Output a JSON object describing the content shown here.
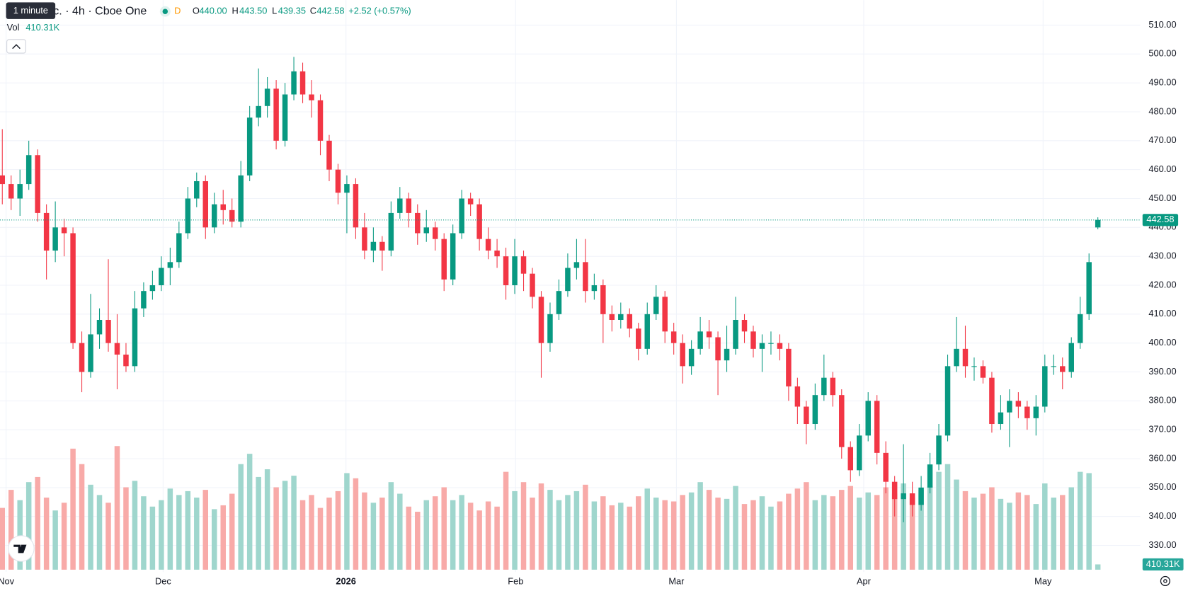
{
  "chart_data": {
    "type": "candlestick",
    "tooltip": "1 minute",
    "legend": {
      "symbol": "nc. · 4h · Cboe One",
      "flag": "D",
      "open_key": "O",
      "open": "440.00",
      "high_key": "H",
      "high": "443.50",
      "low_key": "L",
      "low": "439.35",
      "close_key": "C",
      "close": "442.58",
      "change": "+2.52 (+0.57%)"
    },
    "volume_title": "Vol",
    "volume_label": "410.31K",
    "up_color": "#089981",
    "down_color": "#f23645",
    "volume_up_color": "#9fd6cd",
    "volume_down_color": "#f8aaa8",
    "grid": true,
    "ylim": [
      320.8,
      518.65
    ],
    "yticks": [
      {
        "value": 510,
        "label": "510.00"
      },
      {
        "value": 500,
        "label": "500.00"
      },
      {
        "value": 490,
        "label": "490.00"
      },
      {
        "value": 480,
        "label": "480.00"
      },
      {
        "value": 470,
        "label": "470.00"
      },
      {
        "value": 460,
        "label": "460.00"
      },
      {
        "value": 450,
        "label": "450.00"
      },
      {
        "value": 440,
        "label": "440.00"
      },
      {
        "value": 430,
        "label": "430.00"
      },
      {
        "value": 420,
        "label": "420.00"
      },
      {
        "value": 410,
        "label": "410.00"
      },
      {
        "value": 400,
        "label": "400.00"
      },
      {
        "value": 390,
        "label": "390.00"
      },
      {
        "value": 380,
        "label": "380.00"
      },
      {
        "value": 370,
        "label": "370.00"
      },
      {
        "value": 360,
        "label": "360.00"
      },
      {
        "value": 350,
        "label": "350.00"
      },
      {
        "value": 340,
        "label": "340.00"
      },
      {
        "value": 330,
        "label": "330.00"
      }
    ],
    "xlim": [
      -0.26,
      128.8
    ],
    "xticks": [
      {
        "value": 0.43,
        "label": "Nov"
      },
      {
        "value": 18.2,
        "label": "Dec"
      },
      {
        "value": 38.9,
        "label": "2026"
      },
      {
        "value": 58.1,
        "label": "Feb"
      },
      {
        "value": 76.3,
        "label": "Mar"
      },
      {
        "value": 97.5,
        "label": "Apr"
      },
      {
        "value": 117.8,
        "label": "May"
      }
    ],
    "volume_lim": [
      0,
      10000000
    ],
    "last_price": {
      "value": 442.58,
      "label": "442.58"
    },
    "open": [
      458,
      455,
      450,
      455,
      465,
      445,
      432,
      440,
      438,
      400,
      390,
      403,
      408,
      400,
      396,
      392,
      412,
      418,
      420,
      426,
      428,
      438,
      450,
      456,
      440,
      448,
      446,
      442,
      458,
      478,
      482,
      488,
      470,
      486,
      494,
      486,
      484,
      470,
      460,
      452,
      455,
      440,
      432,
      435,
      432,
      445,
      450,
      445,
      438,
      440,
      436,
      422,
      438,
      450,
      448,
      436,
      432,
      430,
      420,
      430,
      424,
      416,
      400,
      410,
      418,
      426,
      428,
      418,
      420,
      410,
      408,
      410,
      405,
      398,
      410,
      416,
      404,
      400,
      392,
      398,
      404,
      402,
      394,
      398,
      408,
      404,
      398,
      400,
      400,
      398,
      385,
      378,
      372,
      382,
      388,
      382,
      364,
      356,
      368,
      380,
      362,
      352,
      346,
      348,
      344,
      350,
      358,
      368,
      392,
      398,
      392,
      392,
      388,
      372,
      376,
      380,
      378,
      374,
      378,
      392,
      392,
      390,
      400,
      410,
      440
    ],
    "high": [
      474,
      458,
      460,
      470,
      467,
      448,
      449,
      443,
      440,
      404,
      417,
      412,
      429,
      410,
      400,
      418,
      421,
      425,
      430,
      433,
      442,
      454,
      459,
      458,
      452,
      453,
      450,
      463,
      482,
      495,
      492,
      491,
      490,
      499,
      497,
      491,
      486,
      472,
      462,
      458,
      457,
      445,
      440,
      437,
      449,
      454,
      452,
      448,
      446,
      442,
      438,
      441,
      453,
      452,
      450,
      440,
      436,
      433,
      436,
      432,
      426,
      418,
      414,
      422,
      431,
      436,
      436,
      424,
      422,
      413,
      414,
      412,
      407,
      414,
      420,
      418,
      407,
      403,
      401,
      409,
      408,
      404,
      406,
      416,
      410,
      406,
      403,
      404,
      403,
      400,
      388,
      380,
      386,
      396,
      390,
      384,
      366,
      372,
      383,
      382,
      366,
      354,
      365,
      352,
      354,
      362,
      372,
      396,
      409,
      406,
      395,
      394,
      390,
      382,
      384,
      383,
      380,
      382,
      396,
      396,
      395,
      402,
      416,
      431,
      443.5
    ],
    "low": [
      448,
      446,
      444,
      453,
      442,
      422,
      428,
      430,
      398,
      383,
      388,
      398,
      397,
      384,
      390,
      390,
      409,
      415,
      418,
      420,
      426,
      436,
      447,
      436,
      438,
      441,
      440,
      440,
      456,
      475,
      478,
      467,
      468,
      484,
      483,
      478,
      465,
      456,
      448,
      438,
      436,
      429,
      428,
      425,
      430,
      443,
      440,
      434,
      435,
      432,
      418,
      420,
      436,
      444,
      432,
      429,
      426,
      415,
      417,
      418,
      412,
      388,
      397,
      408,
      416,
      422,
      414,
      415,
      400,
      404,
      405,
      402,
      394,
      396,
      408,
      400,
      396,
      386,
      389,
      396,
      398,
      382,
      390,
      396,
      400,
      395,
      390,
      396,
      394,
      380,
      372,
      365,
      370,
      380,
      378,
      360,
      352,
      354,
      366,
      358,
      348,
      340,
      338,
      340,
      342,
      348,
      356,
      366,
      390,
      388,
      387,
      386,
      369,
      370,
      364,
      374,
      370,
      368,
      376,
      389,
      384,
      388,
      398,
      408,
      439.35
    ],
    "close": [
      455,
      450,
      455,
      465,
      445,
      432,
      440,
      438,
      400,
      390,
      403,
      408,
      400,
      396,
      392,
      412,
      418,
      420,
      426,
      428,
      438,
      450,
      456,
      440,
      448,
      446,
      442,
      458,
      478,
      482,
      488,
      470,
      486,
      494,
      486,
      484,
      470,
      460,
      452,
      455,
      440,
      432,
      435,
      432,
      445,
      450,
      445,
      438,
      440,
      436,
      422,
      438,
      450,
      448,
      436,
      432,
      430,
      420,
      430,
      424,
      416,
      400,
      410,
      418,
      426,
      428,
      418,
      420,
      410,
      408,
      410,
      405,
      398,
      410,
      416,
      404,
      400,
      392,
      398,
      404,
      402,
      394,
      398,
      408,
      404,
      398,
      400,
      400,
      398,
      385,
      378,
      372,
      382,
      388,
      382,
      364,
      356,
      368,
      380,
      362,
      352,
      346,
      348,
      344,
      350,
      358,
      368,
      392,
      398,
      392,
      392,
      388,
      372,
      376,
      380,
      378,
      374,
      378,
      392,
      392,
      390,
      400,
      410,
      428,
      442.58
    ],
    "volume": [
      4800000,
      6200000,
      5400000,
      6800000,
      7200000,
      5600000,
      4600000,
      5200000,
      9400000,
      8200000,
      6600000,
      5800000,
      5200000,
      9600000,
      6400000,
      6900000,
      5700000,
      4900000,
      5400000,
      6300000,
      5800000,
      6100000,
      5600000,
      6200000,
      4700000,
      5000000,
      5900000,
      8200000,
      9000000,
      7200000,
      7800000,
      6400000,
      6900000,
      7300000,
      5400000,
      5800000,
      4800000,
      5600000,
      6100000,
      7500000,
      7100000,
      6000000,
      5200000,
      5600000,
      6800000,
      5900000,
      4900000,
      4500000,
      5400000,
      5700000,
      6400000,
      5400000,
      5800000,
      5200000,
      4600000,
      5300000,
      4900000,
      7600000,
      6100000,
      6800000,
      5600000,
      6700000,
      6200000,
      5400000,
      5800000,
      6100000,
      6600000,
      5300000,
      5700000,
      5000000,
      5200000,
      4900000,
      5700000,
      6300000,
      5600000,
      5400000,
      5300000,
      5800000,
      6000000,
      6800000,
      6200000,
      5600000,
      5500000,
      6500000,
      5100000,
      5400000,
      5700000,
      4900000,
      5300000,
      5900000,
      6300000,
      6800000,
      5400000,
      5800000,
      5700000,
      6200000,
      6500000,
      5600000,
      6000000,
      5800000,
      6400000,
      5900000,
      6700000,
      5600000,
      6200000,
      6500000,
      7600000,
      8200000,
      7000000,
      6100000,
      5600000,
      5900000,
      6400000,
      5500000,
      5200000,
      6000000,
      5800000,
      5100000,
      6700000,
      5600000,
      5800000,
      6400000,
      7600000,
      7500000,
      410310
    ]
  }
}
